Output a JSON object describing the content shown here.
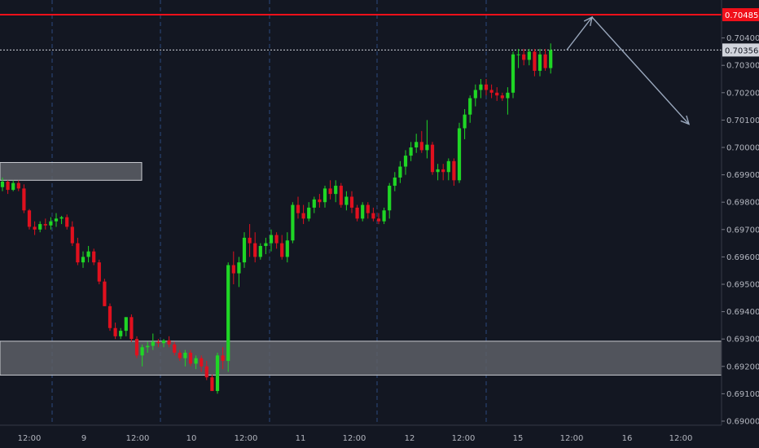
{
  "colors": {
    "background": "#131722",
    "up": "#1fd625",
    "down": "#e0101e",
    "resistance_line": "#f0101a",
    "zone_fill": "#5d5f66",
    "zone_border": "#c9cbd1",
    "vgrid": "#2b4a7e",
    "arrow": "#9aa8bd",
    "axis_text": "#b2b5be"
  },
  "chart_data": {
    "type": "candlestick",
    "ylim": [
      0.6899,
      0.7052
    ],
    "y_ticks": [
      "0.69000",
      "0.69100",
      "0.69200",
      "0.69300",
      "0.69400",
      "0.69500",
      "0.69600",
      "0.69700",
      "0.69800",
      "0.69900",
      "0.70000",
      "0.70100",
      "0.70200",
      "0.70300",
      "0.70400"
    ],
    "x_ticks": [
      "12:00",
      "9",
      "12:00",
      "10",
      "12:00",
      "11",
      "12:00",
      "12",
      "12:00",
      "15",
      "12:00",
      "16",
      "12:00"
    ],
    "resistance": {
      "price": 0.70485,
      "label": "0.70485"
    },
    "current_price": {
      "price": 0.70356,
      "label": "0.70356"
    },
    "zones": [
      {
        "name": "supply-zone",
        "from": 0.6988,
        "to": 0.69945
      },
      {
        "name": "demand-zone",
        "from": 0.69168,
        "to": 0.69292
      }
    ],
    "projection": [
      [
        0.70356,
        0.70356
      ],
      [
        0.70476,
        0.70476
      ],
      [
        0.70085,
        0.70085
      ]
    ],
    "candles": [
      [
        0.69855,
        0.6989,
        0.6984,
        0.69875
      ],
      [
        0.69875,
        0.6988,
        0.6983,
        0.69845
      ],
      [
        0.69845,
        0.6988,
        0.6984,
        0.6987
      ],
      [
        0.6987,
        0.6988,
        0.6984,
        0.6985
      ],
      [
        0.6985,
        0.69865,
        0.6976,
        0.6977
      ],
      [
        0.6977,
        0.69775,
        0.697,
        0.6971
      ],
      [
        0.6971,
        0.6973,
        0.6968,
        0.697
      ],
      [
        0.697,
        0.6973,
        0.6969,
        0.6972
      ],
      [
        0.6972,
        0.6974,
        0.697,
        0.69715
      ],
      [
        0.69715,
        0.69745,
        0.697,
        0.6973
      ],
      [
        0.6973,
        0.6976,
        0.6971,
        0.6974
      ],
      [
        0.6974,
        0.6975,
        0.6972,
        0.69745
      ],
      [
        0.69745,
        0.69755,
        0.697,
        0.6971
      ],
      [
        0.6971,
        0.6973,
        0.6964,
        0.6965
      ],
      [
        0.6965,
        0.6967,
        0.6957,
        0.6958
      ],
      [
        0.6958,
        0.6962,
        0.6956,
        0.696
      ],
      [
        0.696,
        0.6964,
        0.6958,
        0.6962
      ],
      [
        0.6962,
        0.6963,
        0.6957,
        0.6958
      ],
      [
        0.6958,
        0.6959,
        0.695,
        0.6951
      ],
      [
        0.6951,
        0.6952,
        0.6942,
        0.6942
      ],
      [
        0.6942,
        0.6943,
        0.6933,
        0.6934
      ],
      [
        0.6934,
        0.6936,
        0.693,
        0.6931
      ],
      [
        0.6931,
        0.6934,
        0.693,
        0.6933
      ],
      [
        0.6933,
        0.6938,
        0.6931,
        0.6938
      ],
      [
        0.6938,
        0.6939,
        0.6929,
        0.693
      ],
      [
        0.693,
        0.6931,
        0.6923,
        0.6924
      ],
      [
        0.6924,
        0.6928,
        0.692,
        0.6927
      ],
      [
        0.6927,
        0.6929,
        0.6925,
        0.69275
      ],
      [
        0.69275,
        0.6932,
        0.6926,
        0.6929
      ],
      [
        0.6929,
        0.693,
        0.6927,
        0.69285
      ],
      [
        0.69285,
        0.693,
        0.6927,
        0.69295
      ],
      [
        0.69295,
        0.6931,
        0.6927,
        0.6928
      ],
      [
        0.6928,
        0.6929,
        0.6924,
        0.6925
      ],
      [
        0.6925,
        0.6926,
        0.6922,
        0.6923
      ],
      [
        0.6923,
        0.6926,
        0.692,
        0.6925
      ],
      [
        0.6925,
        0.6926,
        0.692,
        0.6921
      ],
      [
        0.6921,
        0.6924,
        0.6919,
        0.6923
      ],
      [
        0.6923,
        0.6924,
        0.6918,
        0.692
      ],
      [
        0.692,
        0.6922,
        0.6915,
        0.6916
      ],
      [
        0.6916,
        0.6917,
        0.6911,
        0.6911
      ],
      [
        0.6911,
        0.6925,
        0.691,
        0.6924
      ],
      [
        0.6924,
        0.6927,
        0.6919,
        0.6922
      ],
      [
        0.6922,
        0.6958,
        0.6918,
        0.6957
      ],
      [
        0.6957,
        0.6962,
        0.695,
        0.6954
      ],
      [
        0.6954,
        0.696,
        0.6949,
        0.6958
      ],
      [
        0.6958,
        0.6969,
        0.6956,
        0.6967
      ],
      [
        0.6967,
        0.6972,
        0.696,
        0.6965
      ],
      [
        0.6965,
        0.6969,
        0.6958,
        0.696
      ],
      [
        0.696,
        0.6965,
        0.6959,
        0.6964
      ],
      [
        0.6964,
        0.6967,
        0.6961,
        0.6965
      ],
      [
        0.6965,
        0.697,
        0.6962,
        0.6968
      ],
      [
        0.6968,
        0.6969,
        0.6963,
        0.6965
      ],
      [
        0.6965,
        0.6968,
        0.6959,
        0.696
      ],
      [
        0.696,
        0.6969,
        0.6958,
        0.6966
      ],
      [
        0.6966,
        0.698,
        0.6965,
        0.6979
      ],
      [
        0.6979,
        0.6982,
        0.6974,
        0.6976
      ],
      [
        0.6976,
        0.6979,
        0.6972,
        0.6974
      ],
      [
        0.6974,
        0.698,
        0.6973,
        0.6978
      ],
      [
        0.6978,
        0.6982,
        0.6976,
        0.6981
      ],
      [
        0.6981,
        0.6983,
        0.6978,
        0.698
      ],
      [
        0.698,
        0.6986,
        0.6978,
        0.6985
      ],
      [
        0.6985,
        0.6988,
        0.6981,
        0.6983
      ],
      [
        0.6983,
        0.6988,
        0.698,
        0.6986
      ],
      [
        0.6986,
        0.6987,
        0.6978,
        0.6979
      ],
      [
        0.6979,
        0.6984,
        0.6977,
        0.6982
      ],
      [
        0.6982,
        0.6984,
        0.6976,
        0.6978
      ],
      [
        0.6978,
        0.6979,
        0.6973,
        0.6974
      ],
      [
        0.6974,
        0.698,
        0.6973,
        0.6979
      ],
      [
        0.6979,
        0.698,
        0.6974,
        0.6976
      ],
      [
        0.6976,
        0.6978,
        0.6973,
        0.6974
      ],
      [
        0.6974,
        0.6976,
        0.6972,
        0.6973
      ],
      [
        0.6973,
        0.6978,
        0.6972,
        0.6977
      ],
      [
        0.6977,
        0.6987,
        0.6974,
        0.6986
      ],
      [
        0.6986,
        0.6991,
        0.6984,
        0.6989
      ],
      [
        0.6989,
        0.6995,
        0.6987,
        0.6993
      ],
      [
        0.6993,
        0.6999,
        0.699,
        0.6997
      ],
      [
        0.6997,
        0.7002,
        0.6995,
        0.7
      ],
      [
        0.7,
        0.7005,
        0.6998,
        0.7002
      ],
      [
        0.7002,
        0.7006,
        0.6998,
        0.6999
      ],
      [
        0.6999,
        0.701,
        0.6996,
        0.7001
      ],
      [
        0.7001,
        0.7002,
        0.699,
        0.6991
      ],
      [
        0.6991,
        0.6994,
        0.6988,
        0.6992
      ],
      [
        0.6992,
        0.6994,
        0.6988,
        0.6991
      ],
      [
        0.6991,
        0.6996,
        0.6988,
        0.6995
      ],
      [
        0.6995,
        0.6996,
        0.6986,
        0.6988
      ],
      [
        0.6988,
        0.7009,
        0.6987,
        0.7007
      ],
      [
        0.7007,
        0.7014,
        0.7003,
        0.7012
      ],
      [
        0.7012,
        0.7019,
        0.7009,
        0.7018
      ],
      [
        0.7018,
        0.7023,
        0.7015,
        0.7021
      ],
      [
        0.7021,
        0.7025,
        0.7018,
        0.7023
      ],
      [
        0.7023,
        0.7025,
        0.7019,
        0.7021
      ],
      [
        0.7021,
        0.7023,
        0.7018,
        0.702
      ],
      [
        0.702,
        0.7022,
        0.7017,
        0.7019
      ],
      [
        0.7019,
        0.702,
        0.7017,
        0.7018
      ],
      [
        0.7018,
        0.7022,
        0.7012,
        0.702
      ],
      [
        0.702,
        0.7035,
        0.7018,
        0.7034
      ],
      [
        0.7034,
        0.7036,
        0.7029,
        0.7034
      ],
      [
        0.7034,
        0.7036,
        0.703,
        0.7032
      ],
      [
        0.7032,
        0.7036,
        0.703,
        0.7035
      ],
      [
        0.7035,
        0.7036,
        0.7026,
        0.7028
      ],
      [
        0.7028,
        0.7036,
        0.7026,
        0.7034
      ],
      [
        0.7034,
        0.7036,
        0.7028,
        0.7029
      ],
      [
        0.7029,
        0.7038,
        0.7027,
        0.70356
      ]
    ]
  }
}
